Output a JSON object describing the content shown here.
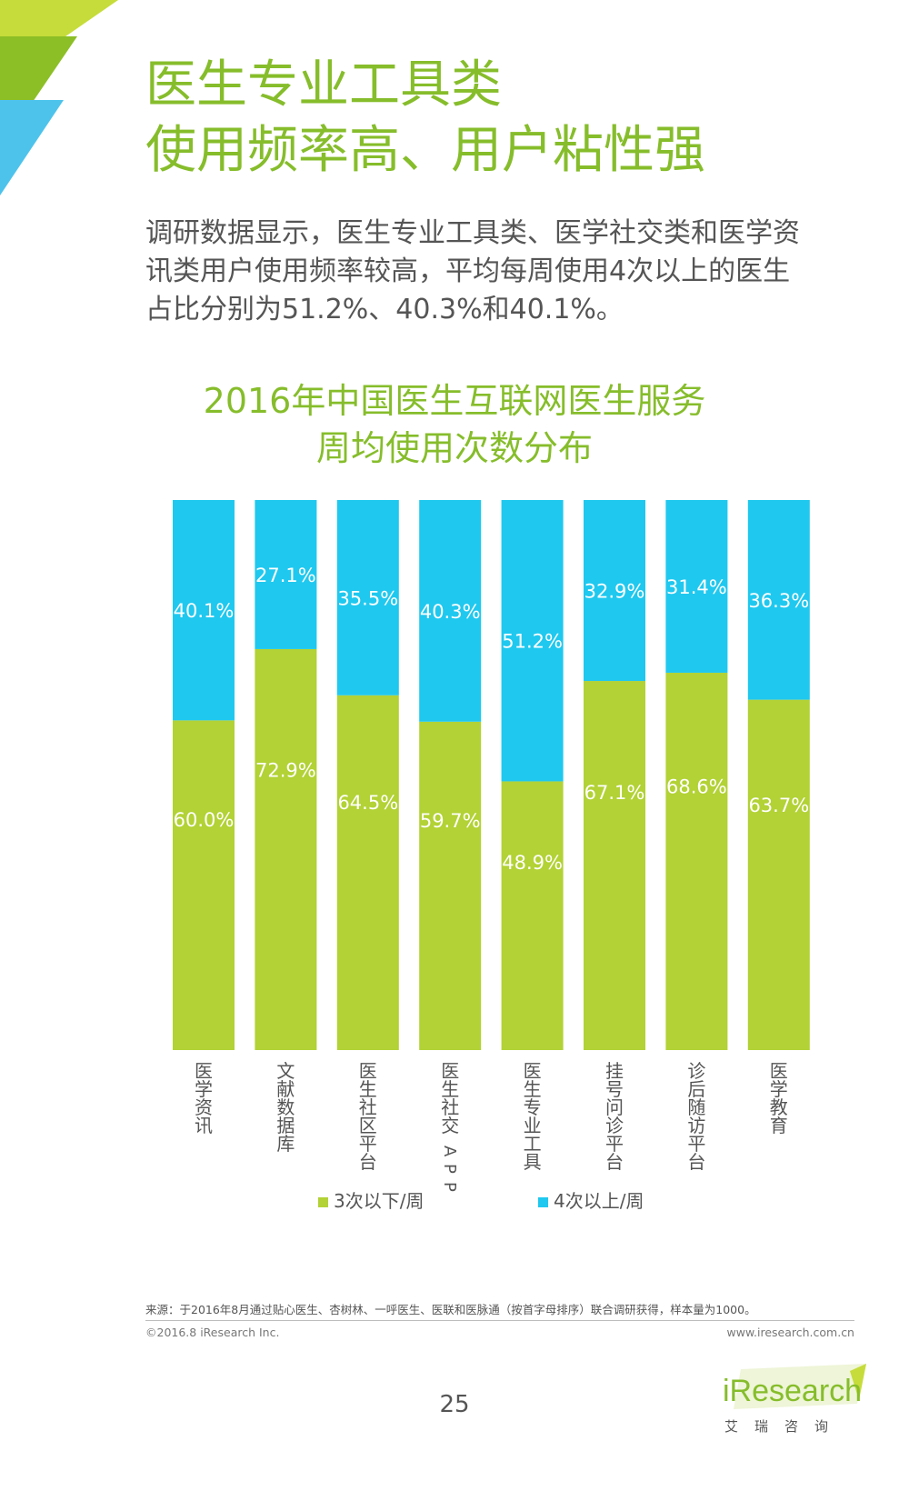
{
  "header": {
    "title_line1": "医生专业工具类",
    "title_line2": "使用频率高、用户粘性强"
  },
  "intro": {
    "line1": "调研数据显示，医生专业工具类、医学社交类和医学资",
    "line2": "讯类用户使用频率较高，平均每周使用4次以上的医生",
    "line3": "占比分别为51.2%、40.3%和40.1%。"
  },
  "colors": {
    "green": "#b2d235",
    "blue": "#1fc8ef",
    "title_green": "#86bd2b"
  },
  "chart_data": {
    "type": "bar",
    "stacked": true,
    "title_line1": "2016年中国医生互联网医生服务",
    "title_line2": "周均使用次数分布",
    "categories": [
      "医学资讯",
      "文献数据库",
      "医生社区平台",
      "医生社交APP",
      "医生专业工具",
      "挂号问诊平台",
      "诊后随访平台",
      "医学教育"
    ],
    "series": [
      {
        "name": "3次以下/周",
        "color": "#b2d235",
        "values": [
          60.0,
          72.9,
          64.5,
          59.7,
          48.9,
          67.1,
          68.6,
          63.7
        ]
      },
      {
        "name": "4次以上/周",
        "color": "#1fc8ef",
        "values": [
          40.1,
          27.1,
          35.5,
          40.3,
          51.2,
          32.9,
          31.4,
          36.3
        ]
      }
    ],
    "ylim": [
      0,
      100
    ],
    "value_suffix": "%",
    "category_label_orientation": "vertical",
    "legend_position": "bottom",
    "grid": false
  },
  "footer": {
    "source": "来源：于2016年8月通过贴心医生、杏树林、一呼医生、医联和医脉通（按首字母排序）联合调研获得，样本量为1000。",
    "copyright": "©2016.8 iResearch Inc.",
    "website": "www.iresearch.com.cn",
    "page_number": "25"
  },
  "logo": {
    "name": "iResearch",
    "subtitle": "艾瑞咨询"
  }
}
